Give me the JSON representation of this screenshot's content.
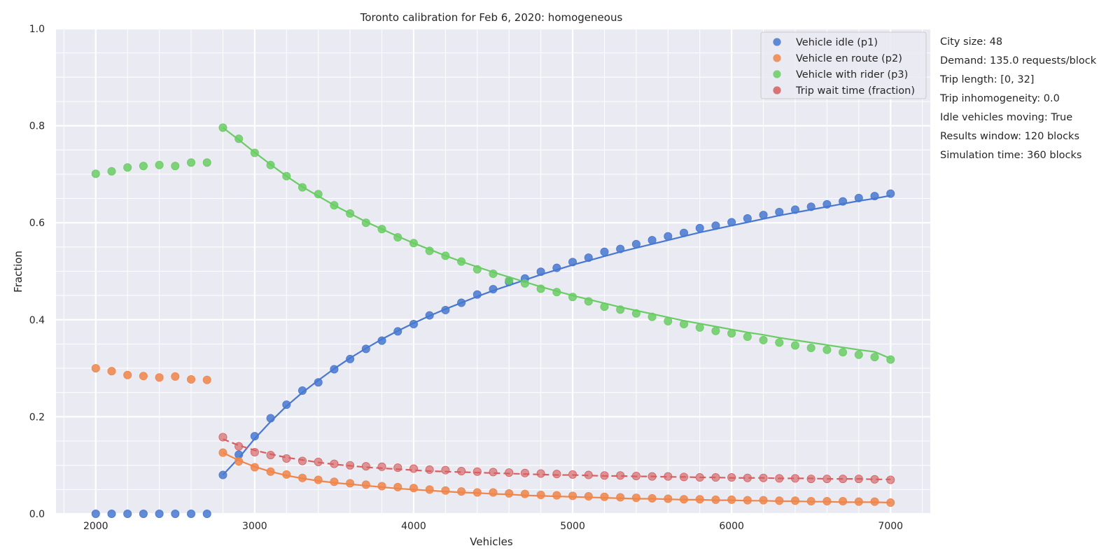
{
  "colors": {
    "background": "#eaeaf2",
    "grid": "#ffffff",
    "text": "#262626",
    "idle": "#4878d0",
    "en_route": "#ee854a",
    "with_rider": "#6acc64",
    "wait": "#d65f5f"
  },
  "info": {
    "city_size": "City size: 48",
    "demand": "Demand: 135.0 requests/block",
    "trip_length": "Trip length: [0, 32]",
    "trip_inhomogeneity": "Trip inhomogeneity: 0.0",
    "idle_moving": "Idle vehicles moving: True",
    "results_window": "Results window: 120 blocks",
    "simulation_time": "Simulation time: 360 blocks"
  },
  "chart_data": {
    "type": "scatter",
    "title": "Toronto calibration for Feb 6, 2020: homogeneous",
    "xlabel": "Vehicles",
    "ylabel": "Fraction",
    "xlim": [
      1750,
      7250
    ],
    "ylim": [
      0,
      1
    ],
    "xticks": [
      2000,
      3000,
      4000,
      5000,
      6000,
      7000
    ],
    "yticks": [
      0.0,
      0.2,
      0.4,
      0.6,
      0.8,
      1.0
    ],
    "ytick_labels": [
      "0.0",
      "0.2",
      "0.4",
      "0.6",
      "0.8",
      "1.0"
    ],
    "grid": true,
    "legend_position": "top-right",
    "x": [
      2000,
      2100,
      2200,
      2300,
      2400,
      2500,
      2600,
      2700,
      2800,
      2900,
      3000,
      3100,
      3200,
      3300,
      3400,
      3500,
      3600,
      3700,
      3800,
      3900,
      4000,
      4100,
      4200,
      4300,
      4400,
      4500,
      4600,
      4700,
      4800,
      4900,
      5000,
      5100,
      5200,
      5300,
      5400,
      5500,
      5600,
      5700,
      5800,
      5900,
      6000,
      6100,
      6200,
      6300,
      6400,
      6500,
      6600,
      6700,
      6800,
      6900,
      7000
    ],
    "fit_start_x": 2800,
    "series": [
      {
        "name": "Vehicle idle (p1)",
        "color_key": "idle",
        "fit_line": "solid",
        "values": [
          0,
          0,
          0,
          0,
          0,
          0,
          0,
          0,
          0.08,
          0.122,
          0.16,
          0.197,
          0.225,
          0.254,
          0.271,
          0.298,
          0.319,
          0.34,
          0.357,
          0.376,
          0.391,
          0.409,
          0.42,
          0.435,
          0.452,
          0.463,
          0.478,
          0.485,
          0.499,
          0.507,
          0.519,
          0.528,
          0.54,
          0.546,
          0.556,
          0.564,
          0.572,
          0.579,
          0.589,
          0.594,
          0.601,
          0.609,
          0.616,
          0.622,
          0.627,
          0.633,
          0.638,
          0.644,
          0.651,
          0.655,
          0.66
        ],
        "fit": [
          0.08,
          0.115,
          0.155,
          0.19,
          0.222,
          0.25,
          0.275,
          0.299,
          0.321,
          0.341,
          0.36,
          0.377,
          0.393,
          0.408,
          0.422,
          0.435,
          0.448,
          0.46,
          0.471,
          0.482,
          0.493,
          0.503,
          0.513,
          0.522,
          0.531,
          0.54,
          0.548,
          0.556,
          0.564,
          0.572,
          0.58,
          0.587,
          0.594,
          0.601,
          0.608,
          0.615,
          0.621,
          0.627,
          0.633,
          0.639,
          0.645,
          0.65,
          0.656
        ]
      },
      {
        "name": "Vehicle en route (p2)",
        "color_key": "en_route",
        "fit_line": "solid",
        "values": [
          0.3,
          0.294,
          0.286,
          0.284,
          0.281,
          0.283,
          0.277,
          0.276,
          0.126,
          0.108,
          0.096,
          0.087,
          0.081,
          0.074,
          0.07,
          0.066,
          0.063,
          0.06,
          0.057,
          0.055,
          0.053,
          0.05,
          0.048,
          0.046,
          0.044,
          0.044,
          0.042,
          0.041,
          0.039,
          0.038,
          0.037,
          0.036,
          0.035,
          0.034,
          0.033,
          0.032,
          0.031,
          0.03,
          0.03,
          0.029,
          0.029,
          0.028,
          0.028,
          0.027,
          0.027,
          0.026,
          0.026,
          0.026,
          0.025,
          0.025,
          0.023
        ],
        "fit": [
          0.126,
          0.11,
          0.097,
          0.087,
          0.079,
          0.073,
          0.068,
          0.064,
          0.061,
          0.058,
          0.055,
          0.052,
          0.05,
          0.048,
          0.046,
          0.044,
          0.043,
          0.041,
          0.04,
          0.038,
          0.037,
          0.036,
          0.035,
          0.034,
          0.033,
          0.032,
          0.031,
          0.031,
          0.03,
          0.029,
          0.029,
          0.028,
          0.028,
          0.027,
          0.027,
          0.026,
          0.026,
          0.025,
          0.025,
          0.024,
          0.024,
          0.024,
          0.023
        ]
      },
      {
        "name": "Vehicle with rider (p3)",
        "color_key": "with_rider",
        "fit_line": "solid",
        "values": [
          0.701,
          0.706,
          0.714,
          0.717,
          0.719,
          0.717,
          0.724,
          0.724,
          0.796,
          0.773,
          0.744,
          0.719,
          0.696,
          0.673,
          0.659,
          0.636,
          0.619,
          0.6,
          0.587,
          0.57,
          0.558,
          0.542,
          0.532,
          0.52,
          0.504,
          0.495,
          0.481,
          0.475,
          0.464,
          0.457,
          0.447,
          0.438,
          0.427,
          0.421,
          0.413,
          0.406,
          0.397,
          0.391,
          0.384,
          0.377,
          0.372,
          0.365,
          0.358,
          0.353,
          0.347,
          0.342,
          0.338,
          0.333,
          0.328,
          0.323,
          0.318
        ],
        "fit": [
          0.796,
          0.771,
          0.745,
          0.72,
          0.696,
          0.674,
          0.655,
          0.636,
          0.619,
          0.602,
          0.587,
          0.572,
          0.558,
          0.545,
          0.532,
          0.52,
          0.509,
          0.498,
          0.488,
          0.478,
          0.468,
          0.459,
          0.45,
          0.442,
          0.434,
          0.426,
          0.419,
          0.412,
          0.405,
          0.398,
          0.392,
          0.386,
          0.38,
          0.374,
          0.369,
          0.363,
          0.358,
          0.353,
          0.348,
          0.343,
          0.338,
          0.334,
          0.32
        ]
      },
      {
        "name": "Trip wait time (fraction)",
        "color_key": "wait",
        "fit_line": "dashed",
        "values": [
          null,
          null,
          null,
          null,
          null,
          null,
          null,
          null,
          0.158,
          0.139,
          0.127,
          0.121,
          0.114,
          0.109,
          0.107,
          0.103,
          0.1,
          0.098,
          0.097,
          0.095,
          0.093,
          0.091,
          0.09,
          0.088,
          0.087,
          0.086,
          0.085,
          0.084,
          0.083,
          0.082,
          0.081,
          0.08,
          0.079,
          0.079,
          0.078,
          0.077,
          0.077,
          0.076,
          0.075,
          0.075,
          0.075,
          0.074,
          0.074,
          0.073,
          0.073,
          0.072,
          0.072,
          0.072,
          0.072,
          0.071,
          0.07
        ],
        "fit": [
          0.154,
          0.141,
          0.131,
          0.123,
          0.116,
          0.111,
          0.106,
          0.102,
          0.099,
          0.096,
          0.094,
          0.092,
          0.09,
          0.088,
          0.087,
          0.086,
          0.085,
          0.084,
          0.083,
          0.082,
          0.081,
          0.08,
          0.08,
          0.079,
          0.078,
          0.078,
          0.077,
          0.077,
          0.076,
          0.076,
          0.075,
          0.075,
          0.074,
          0.074,
          0.074,
          0.073,
          0.073,
          0.073,
          0.072,
          0.072,
          0.072,
          0.071,
          0.071
        ]
      }
    ]
  }
}
